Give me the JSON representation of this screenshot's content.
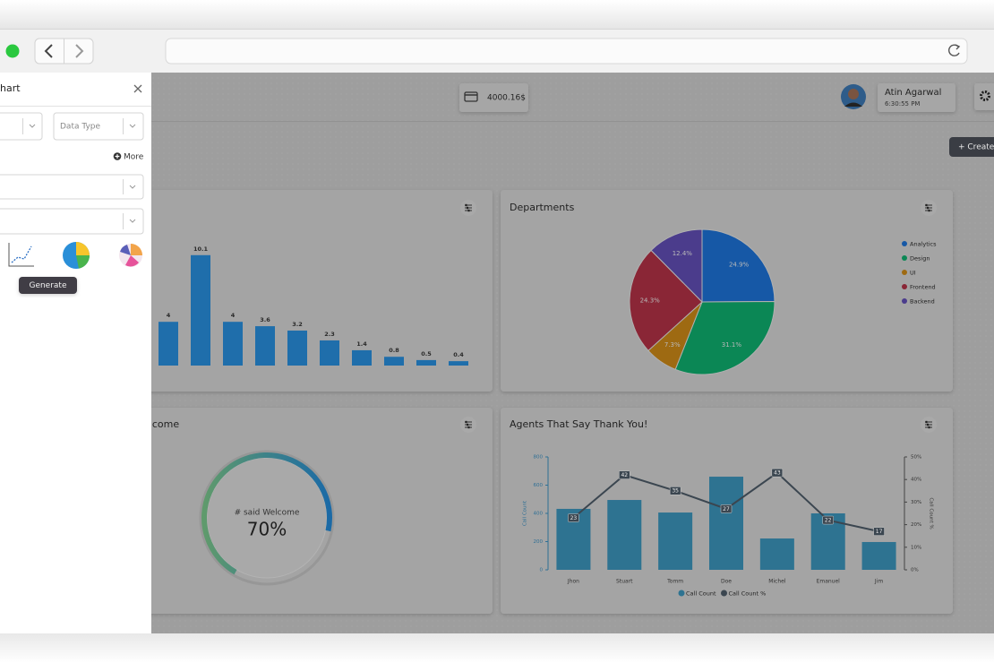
{
  "header": {
    "balance": "4000.16$",
    "user_name": "Atin Agarwal",
    "user_time": "6:30:55 PM",
    "create": "+ Create"
  },
  "panel": {
    "title": "hart",
    "data_type": "Data Type",
    "more": "More",
    "tooltip": "Generate"
  },
  "chart_data": [
    {
      "type": "bar",
      "values": [
        4,
        10.1,
        4,
        3.6,
        3.2,
        2.3,
        1.4,
        0.8,
        0.5,
        0.4
      ],
      "color": "#1f6eab"
    },
    {
      "type": "pie",
      "title": "Departments",
      "categories": [
        "Analytics",
        "Design",
        "UI",
        "Frontend",
        "Backend"
      ],
      "values": [
        24.9,
        31.1,
        7.3,
        24.3,
        12.4
      ],
      "value_labels": [
        "24.9%",
        "31.1%",
        "7.3%",
        "24.3%",
        "12.4%"
      ],
      "colors": [
        "#1658a6",
        "#0b8755",
        "#9e6a12",
        "#8a2636",
        "#4b3c8c"
      ],
      "legend": "right"
    },
    {
      "type": "gauge",
      "title": "elcome",
      "label": "# said Welcome",
      "value": 70,
      "value_label": "70%",
      "lim": [
        0,
        100
      ],
      "colors": [
        "#5f9a6c",
        "#1b6aa6"
      ]
    },
    {
      "type": "combo",
      "title": "Agents That Say Thank You!",
      "categories": [
        "Jhon",
        "Stuart",
        "Tomm",
        "Doe",
        "Michel",
        "Emanuel",
        "Jim"
      ],
      "series": [
        {
          "name": "Call Count",
          "type": "bar",
          "color": "#2e7391",
          "values": [
            432,
            495,
            406,
            660,
            222,
            400,
            197
          ]
        },
        {
          "name": "Call Count %",
          "type": "line",
          "color": "#3b4650",
          "axis": "y2",
          "values": [
            23,
            42,
            35,
            27,
            43,
            22,
            17
          ]
        }
      ],
      "ylabel": "Call Count",
      "y2label": "Call Count %",
      "ylim": [
        0,
        800
      ],
      "yticks": [
        0,
        200,
        400,
        600,
        800
      ],
      "y2lim": [
        0,
        50
      ],
      "y2ticks": [
        {
          "value": 0,
          "label": "0%"
        },
        {
          "value": 10,
          "label": "10%"
        },
        {
          "value": 20,
          "label": "20%"
        },
        {
          "value": 30,
          "label": "30%"
        },
        {
          "value": 40,
          "label": "40%"
        },
        {
          "value": 50,
          "label": "50%"
        }
      ],
      "legend": "bottom"
    }
  ]
}
